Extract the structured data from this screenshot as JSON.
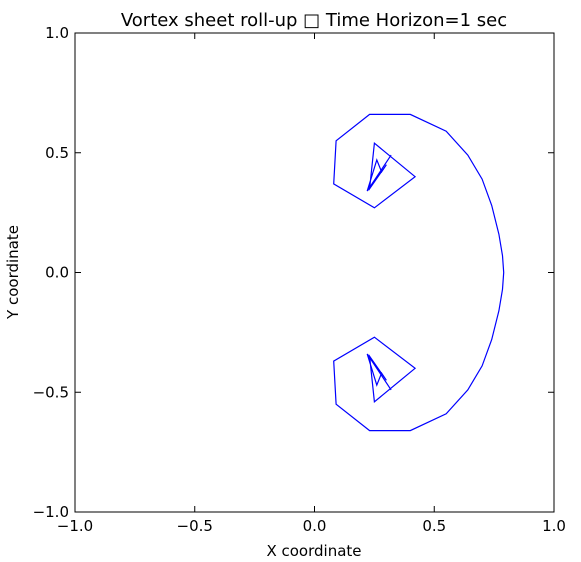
{
  "chart_data": {
    "type": "line",
    "title": "Vortex sheet roll-up □ Time Horizon=1 sec",
    "xlabel": "X coordinate",
    "ylabel": "Y coordinate",
    "xlim": [
      -1.0,
      1.0
    ],
    "ylim": [
      -1.0,
      1.0
    ],
    "xticks": [
      "−1.0",
      "−0.5",
      "0.0",
      "0.5",
      "1.0"
    ],
    "yticks": [
      "−1.0",
      "−0.5",
      "0.0",
      "0.5",
      "1.0"
    ],
    "grid": false,
    "line_color": "#0000ff",
    "series": [
      {
        "x": [
          0.32,
          0.22,
          0.26,
          0.28,
          0.3,
          0.23,
          0.25,
          0.42,
          0.25,
          0.08,
          0.09,
          0.23,
          0.4,
          0.55,
          0.64,
          0.7,
          0.74,
          0.77,
          0.785,
          0.79,
          0.785,
          0.77,
          0.74,
          0.7,
          0.64,
          0.55,
          0.4,
          0.23,
          0.09,
          0.08,
          0.25,
          0.42,
          0.25,
          0.23,
          0.3,
          0.28,
          0.26,
          0.22,
          0.32
        ],
        "y": [
          0.49,
          0.34,
          0.47,
          0.42,
          0.45,
          0.35,
          0.54,
          0.4,
          0.27,
          0.37,
          0.55,
          0.66,
          0.66,
          0.59,
          0.49,
          0.39,
          0.28,
          0.16,
          0.07,
          0.0,
          -0.07,
          -0.16,
          -0.28,
          -0.39,
          -0.49,
          -0.59,
          -0.66,
          -0.66,
          -0.55,
          -0.37,
          -0.27,
          -0.4,
          -0.54,
          -0.35,
          -0.45,
          -0.42,
          -0.47,
          -0.34,
          -0.49
        ]
      }
    ]
  }
}
